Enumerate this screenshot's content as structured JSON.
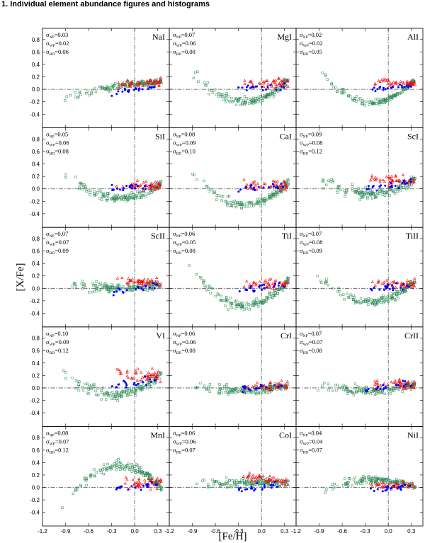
{
  "page": {
    "title": "1. Individual element abundance figures and histograms"
  },
  "colors": {
    "np": "#2e8b57",
    "wp": "#ff0000",
    "bd": "#0000ff",
    "axis": "#000000",
    "ref": "#555555"
  },
  "chart_data": {
    "type": "scatter",
    "layout": "5x3 grid of scatter panels",
    "xlabel": "[Fe/H]",
    "ylabel": "[X/Fe]",
    "xlim": [
      -1.2,
      0.45
    ],
    "ylim": [
      -0.62,
      0.98
    ],
    "xticks": [
      -1.2,
      -0.9,
      -0.6,
      -0.3,
      0.0,
      0.3
    ],
    "xtick_labels": [
      "-1.2",
      "-0.9",
      "-0.6",
      "-0.3",
      "0.0",
      "0.3"
    ],
    "yticks": [
      -0.4,
      -0.2,
      0.0,
      0.2,
      0.4,
      0.6,
      0.8
    ],
    "ytick_labels": [
      "-0.4",
      "-0.2",
      "0.0",
      "0.2",
      "0.4",
      "0.6",
      "0.8"
    ],
    "sigma_labels": [
      "NP",
      "WP",
      "BD"
    ],
    "series_legend": [
      {
        "name": "NP",
        "marker": "open-square"
      },
      {
        "name": "WP",
        "marker": "open-triangle"
      },
      {
        "name": "BD",
        "marker": "filled-circle"
      }
    ],
    "panels": [
      {
        "element": "NaI",
        "sigma": [
          "0.03",
          "0.02",
          "0.06"
        ],
        "trend": {
          "np": [
            -0.15,
            0.05,
            0.12
          ],
          "wp": [
            0.08,
            0.12
          ],
          "bd": [
            -0.05,
            0.05
          ]
        }
      },
      {
        "element": "MgI",
        "sigma": [
          "0.07",
          "0.06",
          "0.08"
        ],
        "trend": {
          "np": [
            0.3,
            -0.2,
            0.1
          ],
          "wp": [
            0.1,
            0.1
          ],
          "bd": [
            0.02,
            0.05
          ]
        }
      },
      {
        "element": "AlI",
        "sigma": [
          "0.02",
          "0.02",
          "0.05"
        ],
        "trend": {
          "np": [
            0.32,
            -0.22,
            0.1
          ],
          "wp": [
            0.12,
            0.1
          ],
          "bd": [
            0.0,
            0.07
          ]
        }
      },
      {
        "element": "SiI",
        "sigma": [
          "0.05",
          "0.06",
          "0.08"
        ],
        "trend": {
          "np": [
            0.22,
            -0.15,
            0.04
          ],
          "wp": [
            0.06,
            0.05
          ],
          "bd": [
            0.02,
            0.04
          ]
        }
      },
      {
        "element": "CaI",
        "sigma": [
          "0.08",
          "0.09",
          "0.10"
        ],
        "trend": {
          "np": [
            0.25,
            -0.25,
            0.05
          ],
          "wp": [
            0.05,
            0.06
          ],
          "bd": [
            0.0,
            0.05
          ]
        }
      },
      {
        "element": "ScI",
        "sigma": [
          "0.09",
          "0.08",
          "0.12"
        ],
        "trend": {
          "np": [
            0.18,
            -0.08,
            0.12
          ],
          "wp": [
            0.15,
            0.12
          ],
          "bd": [
            0.02,
            0.1
          ]
        }
      },
      {
        "element": "ScII",
        "sigma": [
          "0.07",
          "0.07",
          "0.09"
        ],
        "trend": {
          "np": [
            0.05,
            0.02,
            0.06
          ],
          "wp": [
            0.12,
            0.07
          ],
          "bd": [
            -0.05,
            0.05
          ]
        }
      },
      {
        "element": "TiI",
        "sigma": [
          "0.06",
          "0.05",
          "0.08"
        ],
        "trend": {
          "np": [
            0.3,
            -0.28,
            0.07
          ],
          "wp": [
            0.08,
            0.07
          ],
          "bd": [
            -0.02,
            0.05
          ]
        }
      },
      {
        "element": "TiII",
        "sigma": [
          "0.07",
          "0.08",
          "0.09"
        ],
        "trend": {
          "np": [
            0.22,
            -0.22,
            0.07
          ],
          "wp": [
            0.08,
            0.07
          ],
          "bd": [
            -0.02,
            0.05
          ]
        }
      },
      {
        "element": "VI",
        "sigma": [
          "0.10",
          "0.09",
          "0.12"
        ],
        "trend": {
          "np": [
            0.2,
            -0.1,
            0.18
          ],
          "wp": [
            0.25,
            0.18
          ],
          "bd": [
            0.05,
            0.1
          ]
        }
      },
      {
        "element": "CrI",
        "sigma": [
          "0.06",
          "0.06",
          "0.08"
        ],
        "trend": {
          "np": [
            0.04,
            -0.04,
            0.03
          ],
          "wp": [
            0.02,
            0.03
          ],
          "bd": [
            0.0,
            0.03
          ]
        }
      },
      {
        "element": "CrII",
        "sigma": [
          "0.07",
          "0.07",
          "0.08"
        ],
        "trend": {
          "np": [
            0.05,
            -0.05,
            0.05
          ],
          "wp": [
            0.06,
            0.05
          ],
          "bd": [
            -0.02,
            0.05
          ]
        }
      },
      {
        "element": "MnI",
        "sigma": [
          "0.08",
          "0.07",
          "0.12"
        ],
        "trend": {
          "np": [
            -0.25,
            0.35,
            0.06
          ],
          "wp": [
            0.08,
            0.06
          ],
          "bd": [
            -0.02,
            0.06
          ]
        }
      },
      {
        "element": "CoI",
        "sigma": [
          "0.06",
          "0.06",
          "0.07"
        ],
        "trend": {
          "np": [
            0.05,
            0.08,
            0.07
          ],
          "wp": [
            0.18,
            0.08
          ],
          "bd": [
            -0.02,
            0.06
          ]
        }
      },
      {
        "element": "NiI",
        "sigma": [
          "0.04",
          "0.04",
          "0.07"
        ],
        "trend": {
          "np": [
            -0.06,
            0.12,
            0.03
          ],
          "wp": [
            0.03,
            0.04
          ],
          "bd": [
            -0.04,
            0.03
          ]
        }
      }
    ]
  }
}
